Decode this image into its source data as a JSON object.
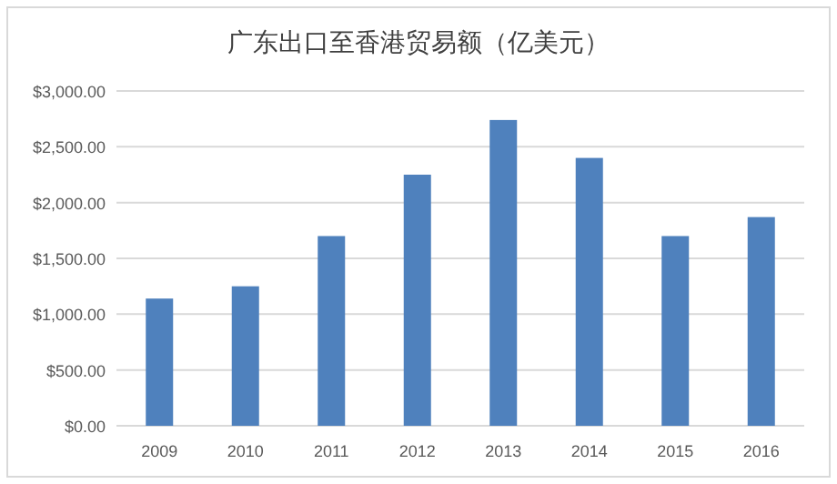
{
  "chart_data": {
    "type": "bar",
    "title": "广东出口至香港贸易额（亿美元）",
    "categories": [
      "2009",
      "2010",
      "2011",
      "2012",
      "2013",
      "2014",
      "2015",
      "2016"
    ],
    "values": [
      1140,
      1250,
      1700,
      2250,
      2740,
      2400,
      1700,
      1870
    ],
    "color": "#4f81bd",
    "ylim": [
      0,
      3000
    ],
    "yticks": [
      {
        "value": 0,
        "label": "$0.00"
      },
      {
        "value": 500,
        "label": "$500.00"
      },
      {
        "value": 1000,
        "label": "$1,000.00"
      },
      {
        "value": 1500,
        "label": "$1,500.00"
      },
      {
        "value": 2000,
        "label": "$2,000.00"
      },
      {
        "value": 2500,
        "label": "$2,500.00"
      },
      {
        "value": 3000,
        "label": "$3,000.00"
      }
    ],
    "grid": "y"
  }
}
